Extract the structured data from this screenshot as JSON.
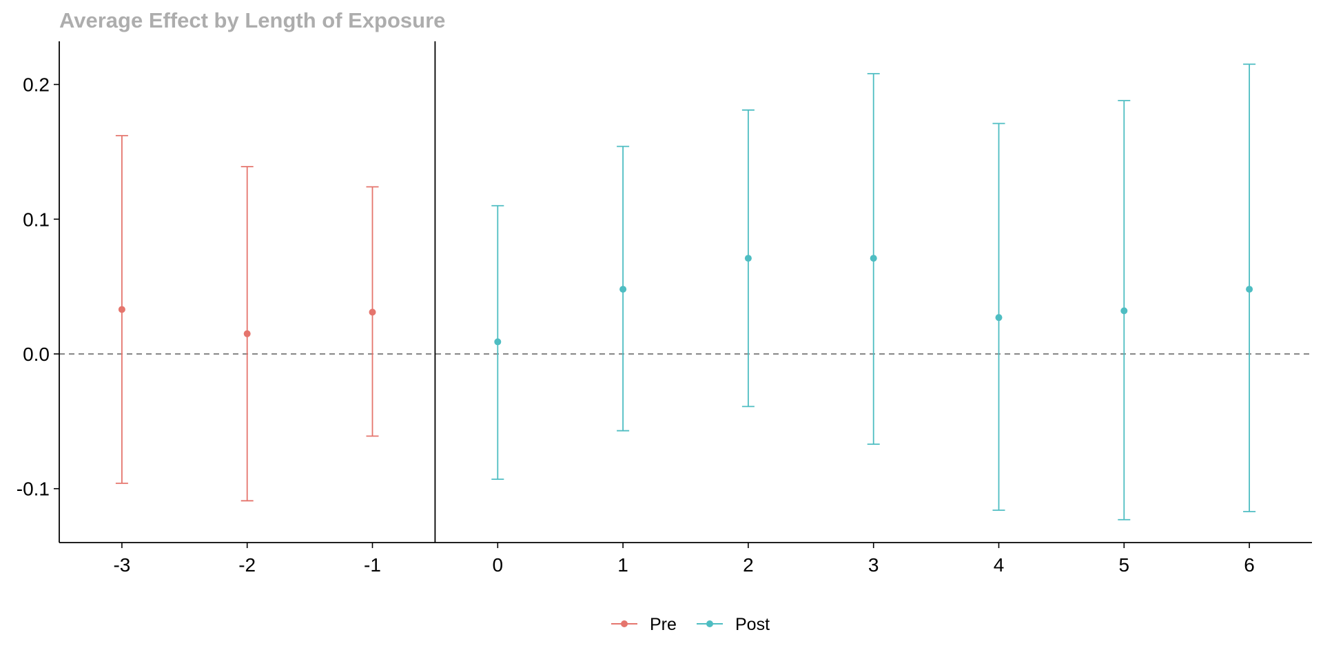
{
  "chart_data": {
    "type": "scatter",
    "title": "Average Effect by Length of Exposure",
    "xlabel": "",
    "ylabel": "",
    "x_ticks": [
      "-3",
      "-2",
      "-1",
      "0",
      "1",
      "2",
      "3",
      "4",
      "5",
      "6"
    ],
    "y_ticks": [
      "-0.1",
      "0.0",
      "0.1",
      "0.2"
    ],
    "xlim": [
      -3.5,
      6.5
    ],
    "ylim": [
      -0.14,
      0.232
    ],
    "grid": false,
    "reference_line_y": 0,
    "vertical_line_x": -0.5,
    "legend_position": "bottom",
    "series": [
      {
        "name": "Pre",
        "color": "#E5756D",
        "points": [
          {
            "x": -3,
            "y": 0.033,
            "lower": -0.096,
            "upper": 0.162
          },
          {
            "x": -2,
            "y": 0.015,
            "lower": -0.109,
            "upper": 0.139
          },
          {
            "x": -1,
            "y": 0.031,
            "lower": -0.061,
            "upper": 0.124
          }
        ]
      },
      {
        "name": "Post",
        "color": "#4EBDC2",
        "points": [
          {
            "x": 0,
            "y": 0.009,
            "lower": -0.093,
            "upper": 0.11
          },
          {
            "x": 1,
            "y": 0.048,
            "lower": -0.057,
            "upper": 0.154
          },
          {
            "x": 2,
            "y": 0.071,
            "lower": -0.039,
            "upper": 0.181
          },
          {
            "x": 3,
            "y": 0.071,
            "lower": -0.067,
            "upper": 0.208
          },
          {
            "x": 4,
            "y": 0.027,
            "lower": -0.116,
            "upper": 0.171
          },
          {
            "x": 5,
            "y": 0.032,
            "lower": -0.123,
            "upper": 0.188
          },
          {
            "x": 6,
            "y": 0.048,
            "lower": -0.117,
            "upper": 0.215
          }
        ]
      }
    ]
  }
}
